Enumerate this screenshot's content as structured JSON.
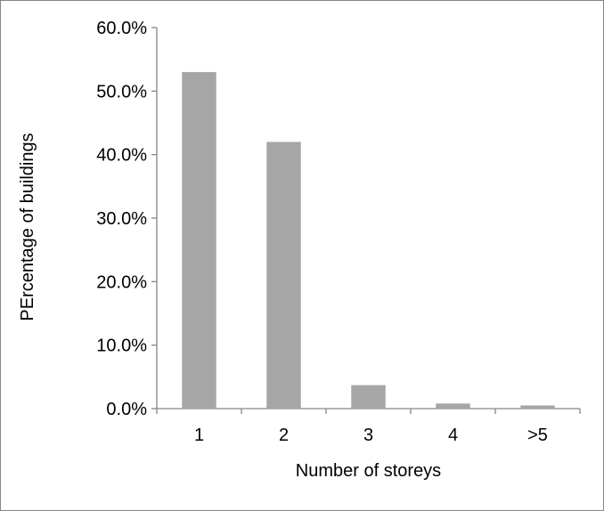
{
  "chart_data": {
    "type": "bar",
    "title": "",
    "xlabel": "Number of storeys",
    "ylabel": "PErcentage of buildings",
    "categories": [
      "1",
      "2",
      "3",
      "4",
      ">5"
    ],
    "values": [
      53.0,
      42.0,
      3.7,
      0.8,
      0.5
    ],
    "value_format": "percent",
    "ylim": [
      0,
      60
    ],
    "yticks": [
      0,
      10,
      20,
      30,
      40,
      50,
      60
    ],
    "ytick_labels": [
      "0.0%",
      "10.0%",
      "20.0%",
      "30.0%",
      "40.0%",
      "50.0%",
      "60.0%"
    ],
    "grid": false,
    "legend": "none",
    "colors": {
      "bar": "#a6a6a6",
      "axis": "#868686",
      "frame": "#868686",
      "text": "#000000"
    }
  }
}
